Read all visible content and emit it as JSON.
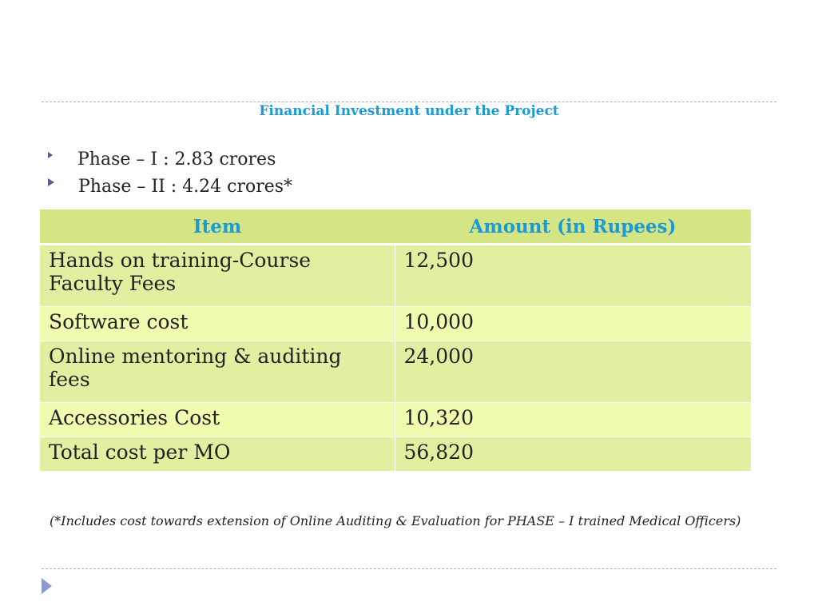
{
  "title": "Financial Investment under the Project",
  "bullets": [
    {
      "text": "Phase – I : 2.83 crores"
    },
    {
      "text": "Phase – II : 4.24 crores*"
    }
  ],
  "table": {
    "headers": [
      "Item",
      "Amount (in Rupees)"
    ],
    "rows": [
      {
        "item": "Hands on training-Course Faculty Fees",
        "amount": "12,500"
      },
      {
        "item": "Software cost",
        "amount": "10,000"
      },
      {
        "item": "Online mentoring & auditing fees",
        "amount": "24,000"
      },
      {
        "item": "Accessories Cost",
        "amount": "10,320"
      },
      {
        "item": "Total cost per MO",
        "amount": "56,820"
      }
    ]
  },
  "footnote": "(*Includes cost towards extension of Online Auditing & Evaluation for PHASE – I trained Medical Officers)",
  "colors": {
    "accent": "#1a9ad6",
    "header_bg": "#d6e583",
    "row_dark": "#e3eea0",
    "row_light": "#f0fbb0",
    "bullet": "#5a5d8f"
  },
  "icons": {
    "bullet": "triangle-bullet-icon",
    "nav": "next-slide-arrow-icon"
  }
}
